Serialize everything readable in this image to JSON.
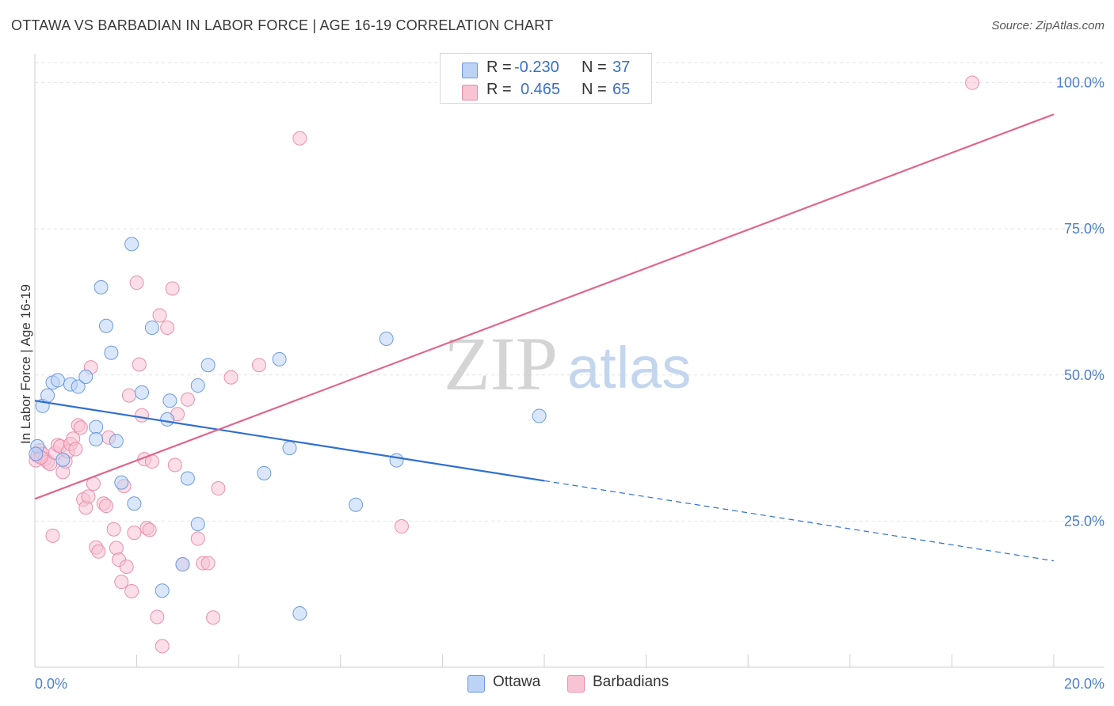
{
  "title": "OTTAWA VS BARBADIAN IN LABOR FORCE | AGE 16-19 CORRELATION CHART",
  "source": "Source: ZipAtlas.com",
  "watermark": {
    "zip": "ZIP",
    "atlas": "atlas"
  },
  "colors": {
    "ottawa_fill": "#bcd3f5",
    "ottawa_stroke": "#6c9be0",
    "ottawa_line": "#2f6fd1",
    "barbadian_fill": "#f8c3d3",
    "barbadian_stroke": "#e98fac",
    "barbadian_line": "#e0668f",
    "tick_text": "#4a7fd0",
    "grid": "#e3e3e3"
  },
  "legend": {
    "r_label": "R =",
    "n_label": "N =",
    "ottawa": {
      "r": "-0.230",
      "n": "37"
    },
    "barbadians": {
      "r": "0.465",
      "n": "65"
    }
  },
  "chart_data": {
    "type": "scatter",
    "title": "OTTAWA VS BARBADIAN IN LABOR FORCE | AGE 16-19 CORRELATION CHART",
    "ylabel": "In Labor Force | Age 16-19",
    "xlabel": "",
    "xlim": [
      0,
      20
    ],
    "ylim": [
      0,
      104
    ],
    "x_tick_labels": [
      "0.0%",
      "20.0%"
    ],
    "y_ticks": [
      {
        "value": 25,
        "label": "25.0%"
      },
      {
        "value": 50,
        "label": "50.0%"
      },
      {
        "value": 75,
        "label": "75.0%"
      },
      {
        "value": 100,
        "label": "100.0%"
      }
    ],
    "grid": true,
    "legend_position": "top-center",
    "series": [
      {
        "name": "Ottawa",
        "r": -0.23,
        "n": 37,
        "trend": {
          "x0": 0,
          "y0": 45.6,
          "x1": 10,
          "y1": 31.9,
          "dash_to_x": 20,
          "dash_to_y": 18.2
        },
        "points": [
          [
            0.05,
            37.8
          ],
          [
            0.15,
            44.7
          ],
          [
            0.25,
            46.5
          ],
          [
            0.35,
            48.7
          ],
          [
            0.45,
            49.1
          ],
          [
            0.55,
            35.5
          ],
          [
            0.7,
            48.4
          ],
          [
            0.85,
            48.0
          ],
          [
            1.0,
            49.7
          ],
          [
            1.2,
            41.1
          ],
          [
            1.2,
            39.0
          ],
          [
            1.3,
            65.0
          ],
          [
            1.4,
            58.4
          ],
          [
            1.5,
            53.8
          ],
          [
            1.6,
            38.7
          ],
          [
            1.7,
            31.6
          ],
          [
            1.9,
            72.4
          ],
          [
            1.95,
            28.0
          ],
          [
            2.1,
            47.0
          ],
          [
            2.3,
            58.1
          ],
          [
            2.5,
            13.1
          ],
          [
            2.6,
            42.4
          ],
          [
            2.65,
            45.6
          ],
          [
            2.9,
            17.6
          ],
          [
            3.0,
            32.3
          ],
          [
            3.2,
            24.5
          ],
          [
            3.2,
            48.2
          ],
          [
            3.4,
            51.7
          ],
          [
            4.5,
            33.2
          ],
          [
            4.8,
            52.7
          ],
          [
            5.0,
            37.5
          ],
          [
            5.2,
            9.2
          ],
          [
            6.3,
            27.8
          ],
          [
            6.9,
            56.2
          ],
          [
            7.1,
            35.4
          ],
          [
            9.9,
            43.0
          ],
          [
            0.02,
            36.5
          ]
        ]
      },
      {
        "name": "Barbadians",
        "r": 0.465,
        "n": 65,
        "trend": {
          "x0": 0,
          "y0": 28.8,
          "x1": 20,
          "y1": 94.6
        },
        "points": [
          [
            0.02,
            35.4
          ],
          [
            0.05,
            36.2
          ],
          [
            0.1,
            37.1
          ],
          [
            0.15,
            36.5
          ],
          [
            0.2,
            35.6
          ],
          [
            0.25,
            35.1
          ],
          [
            0.3,
            34.8
          ],
          [
            0.35,
            22.5
          ],
          [
            0.4,
            36.7
          ],
          [
            0.45,
            38.0
          ],
          [
            0.5,
            37.8
          ],
          [
            0.55,
            33.4
          ],
          [
            0.6,
            35.2
          ],
          [
            0.65,
            36.9
          ],
          [
            0.7,
            38.2
          ],
          [
            0.75,
            39.1
          ],
          [
            0.8,
            37.3
          ],
          [
            0.85,
            41.4
          ],
          [
            0.9,
            41.0
          ],
          [
            0.95,
            28.7
          ],
          [
            1.0,
            27.3
          ],
          [
            1.05,
            29.2
          ],
          [
            1.1,
            51.3
          ],
          [
            1.15,
            31.4
          ],
          [
            1.2,
            20.5
          ],
          [
            1.25,
            19.8
          ],
          [
            1.35,
            28.0
          ],
          [
            1.4,
            27.6
          ],
          [
            1.45,
            39.3
          ],
          [
            1.55,
            23.6
          ],
          [
            1.6,
            20.4
          ],
          [
            1.65,
            18.4
          ],
          [
            1.7,
            14.6
          ],
          [
            1.75,
            31.0
          ],
          [
            1.8,
            17.2
          ],
          [
            1.85,
            46.5
          ],
          [
            1.9,
            13.0
          ],
          [
            1.95,
            23.0
          ],
          [
            2.0,
            65.8
          ],
          [
            2.05,
            51.8
          ],
          [
            2.1,
            43.1
          ],
          [
            2.15,
            35.6
          ],
          [
            2.2,
            23.8
          ],
          [
            2.25,
            23.5
          ],
          [
            2.3,
            35.2
          ],
          [
            2.4,
            8.6
          ],
          [
            2.45,
            60.2
          ],
          [
            2.5,
            3.6
          ],
          [
            2.6,
            58.1
          ],
          [
            2.7,
            64.8
          ],
          [
            2.75,
            34.6
          ],
          [
            2.8,
            43.3
          ],
          [
            2.9,
            17.6
          ],
          [
            3.0,
            45.8
          ],
          [
            3.2,
            22.0
          ],
          [
            3.3,
            17.8
          ],
          [
            3.4,
            17.8
          ],
          [
            3.5,
            8.5
          ],
          [
            3.6,
            30.6
          ],
          [
            3.85,
            49.6
          ],
          [
            4.4,
            51.7
          ],
          [
            5.2,
            90.5
          ],
          [
            7.2,
            24.1
          ],
          [
            18.4,
            100.0
          ],
          [
            0.12,
            35.9
          ]
        ]
      }
    ]
  },
  "bottom_legend": {
    "ottawa": "Ottawa",
    "barbadians": "Barbadians"
  }
}
